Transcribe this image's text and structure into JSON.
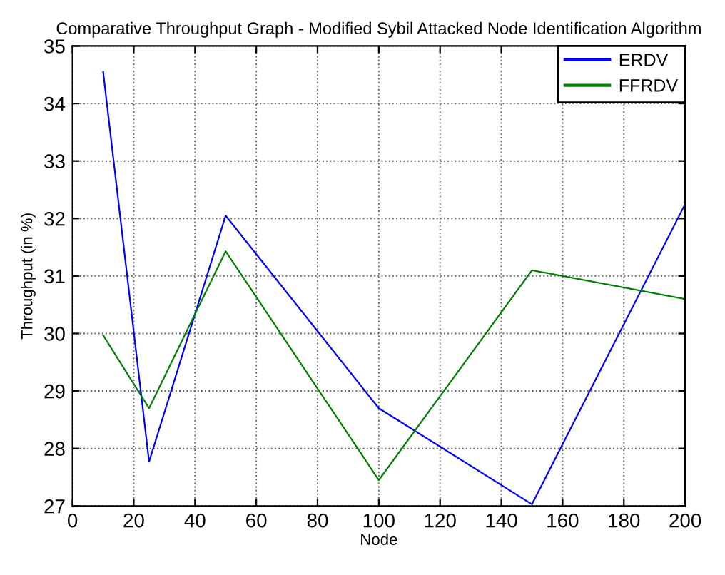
{
  "chart_data": {
    "type": "line",
    "title": "Comparative Throughput Graph - Modified Sybil Attacked Node Identification Algorithm",
    "xlabel": "Node",
    "ylabel": "Throughput (in %)",
    "x": [
      10,
      25,
      50,
      100,
      150,
      200
    ],
    "series": [
      {
        "name": "ERDV",
        "color": "#0000ff",
        "values": [
          34.55,
          27.77,
          32.05,
          28.7,
          27.03,
          32.25
        ]
      },
      {
        "name": "FFRDV",
        "color": "#008000",
        "values": [
          29.97,
          28.7,
          31.43,
          27.45,
          31.1,
          30.6
        ]
      }
    ],
    "xlim": [
      0,
      200
    ],
    "ylim": [
      27,
      35
    ],
    "xticks": [
      0,
      20,
      40,
      60,
      80,
      100,
      120,
      140,
      160,
      180,
      200
    ],
    "yticks": [
      27,
      28,
      29,
      30,
      31,
      32,
      33,
      34,
      35
    ],
    "grid": true,
    "legend": "top right",
    "marker": "none",
    "line_style": "solid"
  }
}
